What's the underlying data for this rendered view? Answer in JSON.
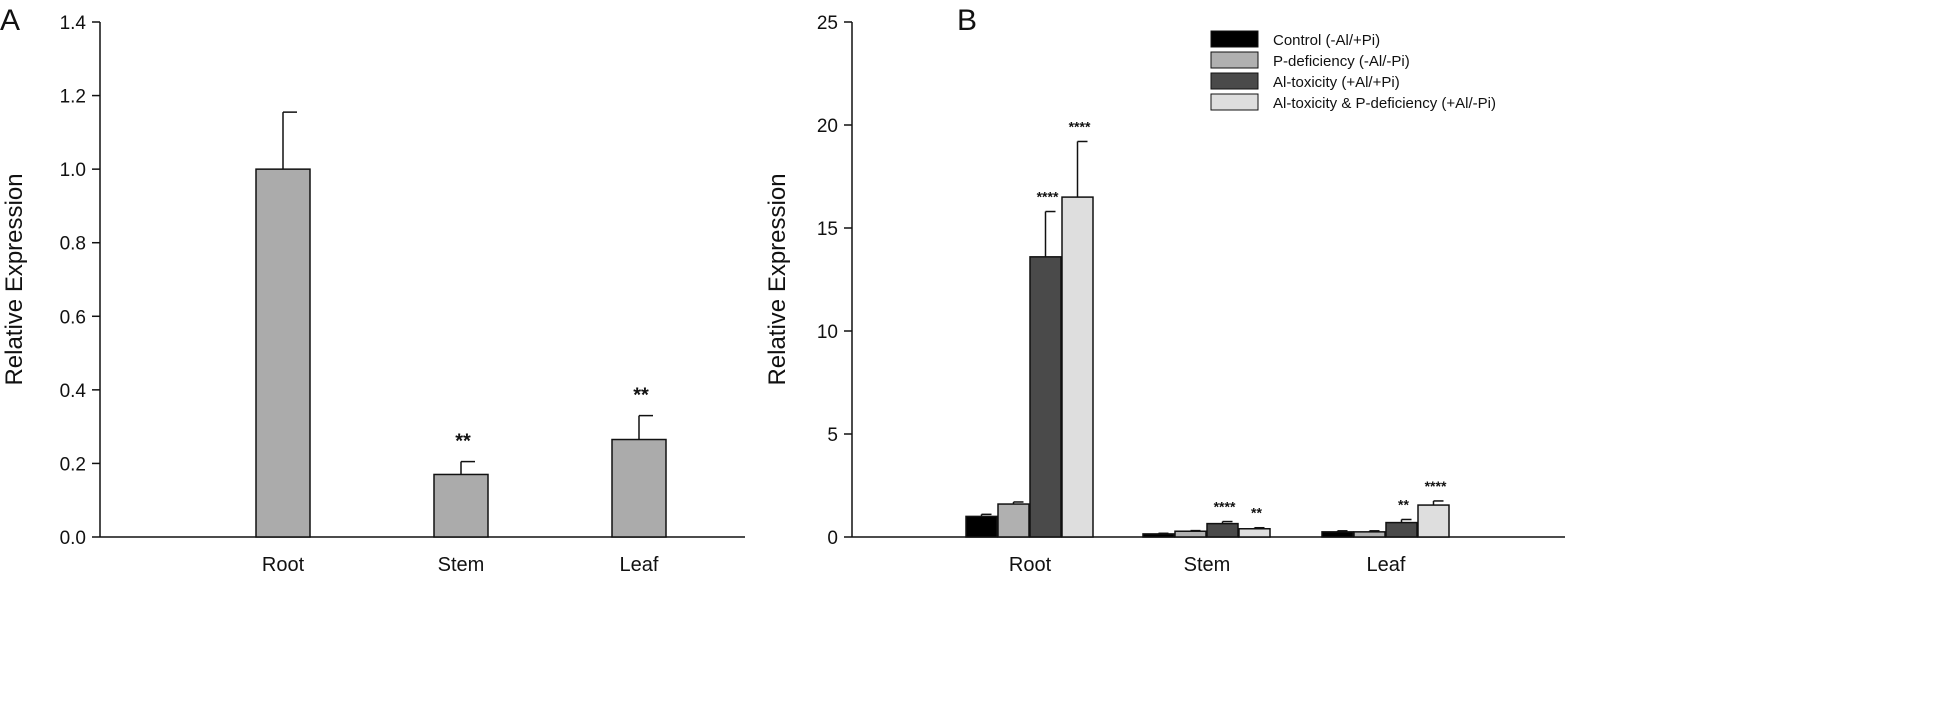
{
  "figure": {
    "panels": [
      "A",
      "B"
    ]
  },
  "chart_data": [
    {
      "type": "bar",
      "panel": "A",
      "ylabel": "Relative Expression",
      "xlabel": "",
      "ylim": [
        0,
        1.4
      ],
      "yticks": [
        "0.0",
        "0.2",
        "0.4",
        "0.6",
        "0.8",
        "1.0",
        "1.2",
        "1.4"
      ],
      "categories": [
        "Root",
        "Stem",
        "Leaf"
      ],
      "values": [
        1.0,
        0.17,
        0.265
      ],
      "errors": [
        0.155,
        0.035,
        0.065
      ],
      "significance": [
        "",
        "**",
        "**"
      ],
      "bar_color": "#ababab",
      "grid": false
    },
    {
      "type": "bar",
      "panel": "B",
      "ylabel": "Relative Expression",
      "xlabel": "",
      "ylim": [
        0,
        25
      ],
      "yticks": [
        "0",
        "5",
        "10",
        "15",
        "20",
        "25"
      ],
      "categories": [
        "Root",
        "Stem",
        "Leaf"
      ],
      "legend_position": "top-right",
      "grid": false,
      "series": [
        {
          "name": "Control  (-Al/+Pi)",
          "color": "#000000",
          "values": [
            1.0,
            0.15,
            0.25
          ],
          "errors": [
            0.1,
            0.03,
            0.05
          ],
          "significance": [
            "",
            "",
            ""
          ]
        },
        {
          "name": "P-deficiency (-Al/-Pi)",
          "color": "#b0b0b0",
          "values": [
            1.6,
            0.28,
            0.25
          ],
          "errors": [
            0.1,
            0.03,
            0.05
          ],
          "significance": [
            "",
            "",
            ""
          ]
        },
        {
          "name": "Al-toxicity (+Al/+Pi)",
          "color": "#4a4a4a",
          "values": [
            13.6,
            0.65,
            0.7
          ],
          "errors": [
            2.2,
            0.1,
            0.15
          ],
          "significance": [
            "****",
            "****",
            "**"
          ]
        },
        {
          "name": "Al-toxicity & P-deficiency  (+Al/-Pi)",
          "color": "#dedede",
          "values": [
            16.5,
            0.4,
            1.55
          ],
          "errors": [
            2.7,
            0.05,
            0.2
          ],
          "significance": [
            "****",
            "**",
            "****"
          ]
        }
      ]
    }
  ]
}
